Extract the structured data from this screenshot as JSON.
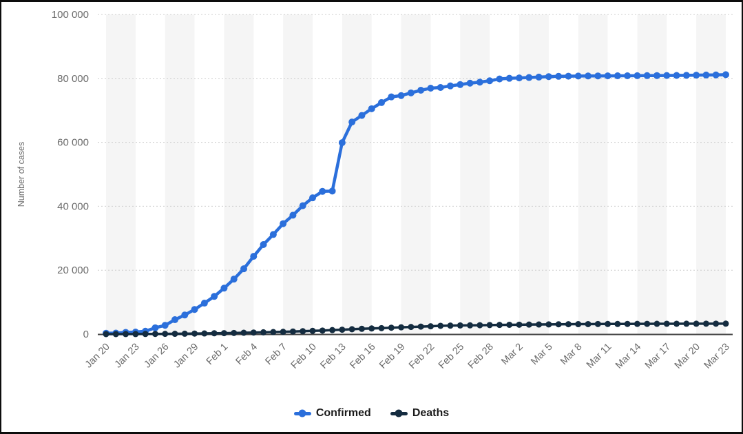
{
  "chart_data": {
    "type": "line",
    "title": "",
    "xlabel": "",
    "ylabel": "Number of cases",
    "grid": "dotted-horizontal",
    "background_bands": "alternating vertical light-gray bands, one band per 3-day group",
    "legend_position": "bottom-center",
    "ylim": [
      0,
      100000
    ],
    "yticks": [
      0,
      20000,
      40000,
      60000,
      80000,
      100000
    ],
    "ytick_labels": [
      "0",
      "20 000",
      "40 000",
      "60 000",
      "80 000",
      "100 000"
    ],
    "x_tick_every": 3,
    "x_tick_labels_visible": [
      "Jan 20",
      "Jan 23",
      "Jan 26",
      "Jan 29",
      "Feb 1",
      "Feb 4",
      "Feb 7",
      "Feb 10",
      "Feb 13",
      "Feb 16",
      "Feb 19",
      "Feb 22",
      "Feb 25",
      "Feb 28",
      "Mar 2",
      "Mar 5",
      "Mar 8",
      "Mar 11",
      "Mar 14",
      "Mar 17",
      "Mar 20",
      "Mar 23"
    ],
    "x": [
      "Jan 20",
      "Jan 21",
      "Jan 22",
      "Jan 23",
      "Jan 24",
      "Jan 25",
      "Jan 26",
      "Jan 27",
      "Jan 28",
      "Jan 29",
      "Jan 30",
      "Jan 31",
      "Feb 1",
      "Feb 2",
      "Feb 3",
      "Feb 4",
      "Feb 5",
      "Feb 6",
      "Feb 7",
      "Feb 8",
      "Feb 9",
      "Feb 10",
      "Feb 11",
      "Feb 12",
      "Feb 13",
      "Feb 14",
      "Feb 15",
      "Feb 16",
      "Feb 17",
      "Feb 18",
      "Feb 19",
      "Feb 20",
      "Feb 21",
      "Feb 22",
      "Feb 23",
      "Feb 24",
      "Feb 25",
      "Feb 26",
      "Feb 27",
      "Feb 28",
      "Feb 29",
      "Mar 1",
      "Mar 2",
      "Mar 3",
      "Mar 4",
      "Mar 5",
      "Mar 6",
      "Mar 7",
      "Mar 8",
      "Mar 9",
      "Mar 10",
      "Mar 11",
      "Mar 12",
      "Mar 13",
      "Mar 14",
      "Mar 15",
      "Mar 16",
      "Mar 17",
      "Mar 18",
      "Mar 19",
      "Mar 20",
      "Mar 21",
      "Mar 22",
      "Mar 23"
    ],
    "series": [
      {
        "name": "Confirmed",
        "color": "#2b6fdb",
        "values": [
          278,
          326,
          547,
          639,
          916,
          1979,
          2744,
          4515,
          5974,
          7711,
          9692,
          11791,
          14380,
          17205,
          20438,
          24324,
          28018,
          31161,
          34546,
          37198,
          40171,
          42638,
          44653,
          44759,
          59895,
          66358,
          68413,
          70513,
          72434,
          74211,
          74619,
          75465,
          76288,
          76936,
          77150,
          77658,
          78064,
          78497,
          78824,
          79251,
          79824,
          80026,
          80151,
          80270,
          80409,
          80552,
          80651,
          80695,
          80735,
          80754,
          80778,
          80793,
          80813,
          80824,
          80844,
          80860,
          80881,
          80894,
          80928,
          80967,
          81008,
          81054,
          81093,
          81171
        ]
      },
      {
        "name": "Deaths",
        "color": "#142c40",
        "values": [
          6,
          9,
          17,
          25,
          41,
          56,
          80,
          106,
          132,
          170,
          213,
          259,
          304,
          361,
          425,
          490,
          563,
          636,
          722,
          811,
          908,
          1016,
          1113,
          1259,
          1380,
          1523,
          1665,
          1770,
          1868,
          2004,
          2118,
          2236,
          2345,
          2442,
          2592,
          2663,
          2715,
          2744,
          2788,
          2835,
          2870,
          2912,
          2943,
          2981,
          3012,
          3042,
          3070,
          3097,
          3119,
          3136,
          3158,
          3169,
          3176,
          3189,
          3199,
          3213,
          3226,
          3237,
          3245,
          3248,
          3255,
          3261,
          3270,
          3277
        ]
      }
    ]
  },
  "colors": {
    "confirmed_line": "#2b6fdb",
    "deaths_line": "#142c40",
    "band_gray": "#f5f5f5",
    "gridline": "#cccccc",
    "axis_line": "#454545",
    "tick_text": "#6b6b6b",
    "legend_text": "#1a1a1a",
    "frame_border": "#0d0d0d",
    "background": "#ffffff"
  }
}
